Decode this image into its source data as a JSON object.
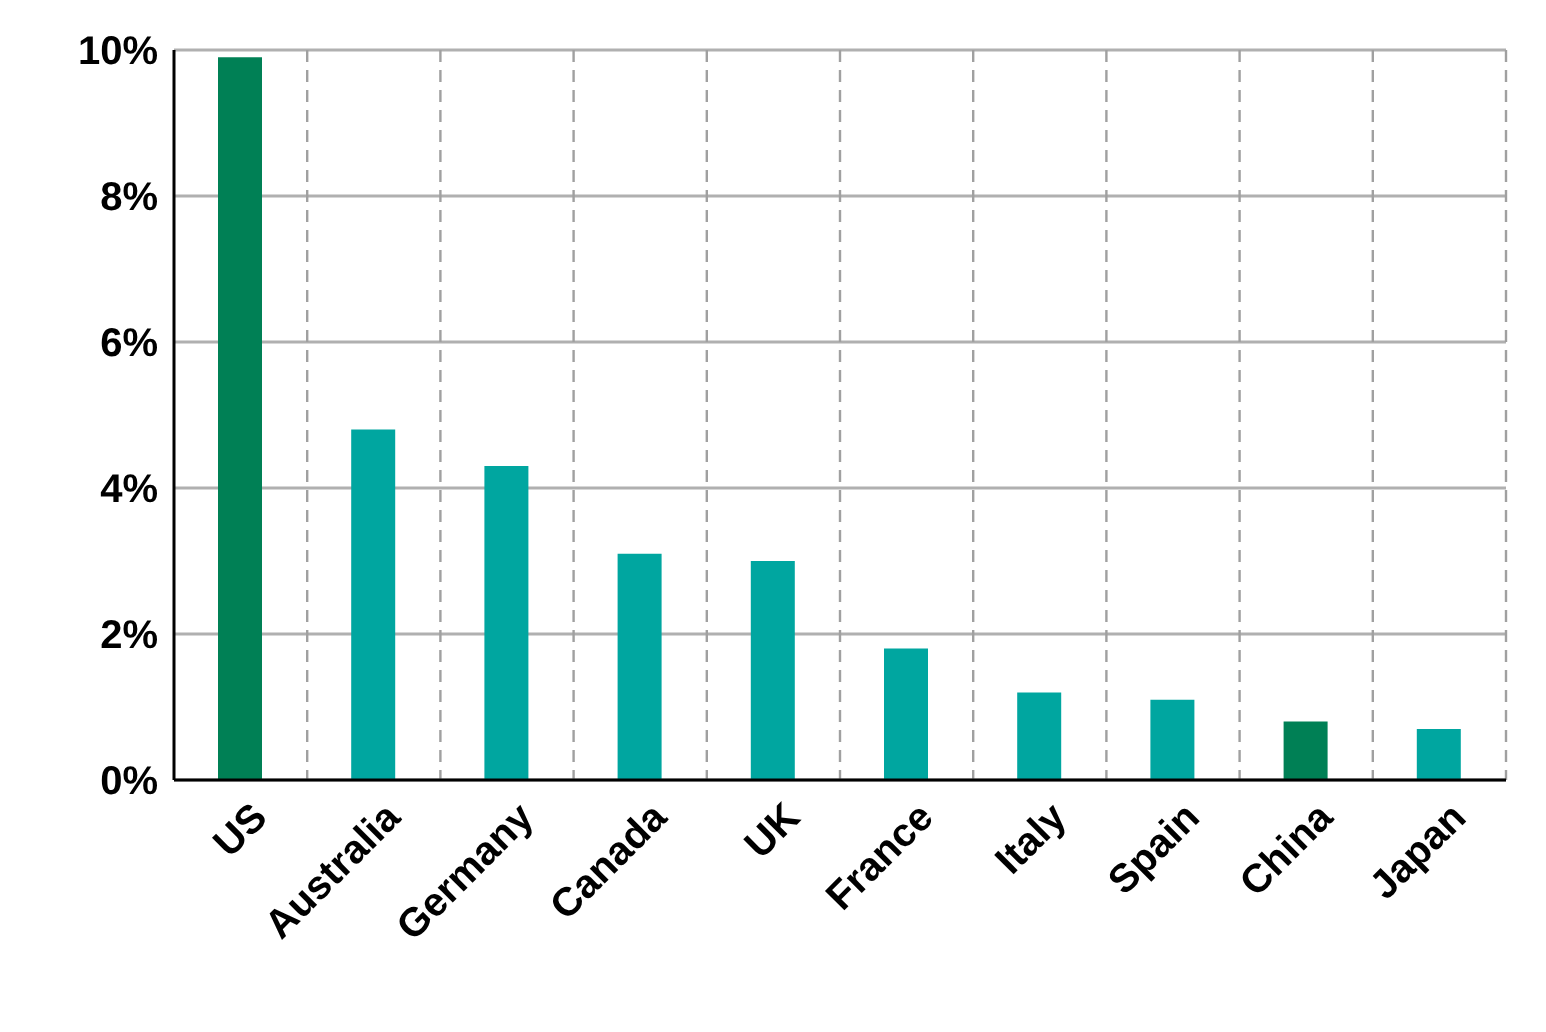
{
  "chart_data": {
    "type": "bar",
    "categories": [
      "US",
      "Australia",
      "Germany",
      "Canada",
      "UK",
      "France",
      "Italy",
      "Spain",
      "China",
      "Japan"
    ],
    "values": [
      9.9,
      4.8,
      4.3,
      3.1,
      3.0,
      1.8,
      1.2,
      1.1,
      0.8,
      0.7
    ],
    "colors": [
      "#008055",
      "#00a6a0",
      "#00a6a0",
      "#00a6a0",
      "#00a6a0",
      "#00a6a0",
      "#00a6a0",
      "#00a6a0",
      "#008055",
      "#00a6a0"
    ],
    "ylim": [
      0,
      10
    ],
    "yticks": [
      {
        "value": 0,
        "label": "0%"
      },
      {
        "value": 2,
        "label": "2%"
      },
      {
        "value": 4,
        "label": "4%"
      },
      {
        "value": 6,
        "label": "6%"
      },
      {
        "value": 8,
        "label": "8%"
      },
      {
        "value": 10,
        "label": "10%"
      }
    ],
    "grid": true
  }
}
